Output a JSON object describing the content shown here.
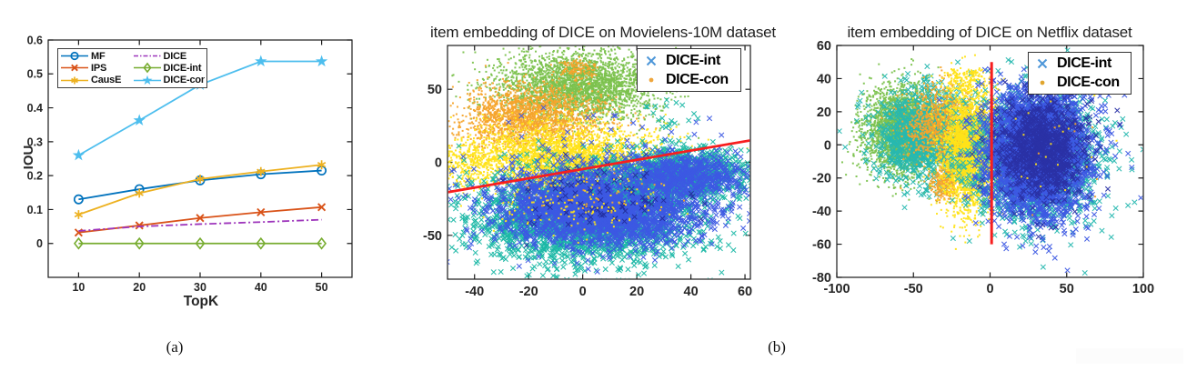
{
  "figure": {
    "captions": {
      "a": "(a)",
      "b": "(b)"
    },
    "text_color": "#262626"
  },
  "chart_data": [
    {
      "id": "iou-vs-topk",
      "type": "line",
      "title": "",
      "xlabel": "TopK",
      "ylabel": "IOU",
      "x": [
        10,
        20,
        30,
        40,
        50
      ],
      "xlim": [
        5,
        55
      ],
      "ylim": [
        -0.1,
        0.6
      ],
      "xticks": [
        10,
        20,
        30,
        40,
        50
      ],
      "yticks": [
        0,
        0.1,
        0.2,
        0.3,
        0.4,
        0.5,
        0.6
      ],
      "grid": false,
      "legend_position": "top-left",
      "series": [
        {
          "name": "MF",
          "color": "#0072BD",
          "marker": "circle",
          "line": "solid",
          "values": [
            0.13,
            0.16,
            0.186,
            0.204,
            0.215
          ]
        },
        {
          "name": "IPS",
          "color": "#D95319",
          "marker": "x",
          "line": "solid",
          "values": [
            0.032,
            0.053,
            0.075,
            0.092,
            0.107
          ]
        },
        {
          "name": "CausE",
          "color": "#EDB120",
          "marker": "asterisk",
          "line": "solid",
          "values": [
            0.085,
            0.148,
            0.19,
            0.212,
            0.232
          ]
        },
        {
          "name": "DICE",
          "color": "#9E36BC",
          "marker": "none",
          "line": "dashdot",
          "values": [
            0.037,
            0.05,
            0.057,
            0.063,
            0.07
          ]
        },
        {
          "name": "DICE-int",
          "color": "#77AC30",
          "marker": "diamond",
          "line": "solid",
          "values": [
            0,
            0,
            0,
            0,
            0
          ]
        },
        {
          "name": "DICE-con",
          "color": "#4DBEEE",
          "marker": "pentagram",
          "line": "solid",
          "values": [
            0.26,
            0.363,
            0.468,
            0.537,
            0.537
          ]
        }
      ]
    },
    {
      "id": "tsne-movielens-10m",
      "type": "scatter",
      "title": "item embedding of DICE on Movielens-10M dataset",
      "xlim": [
        -50,
        62
      ],
      "ylim": [
        -80,
        80
      ],
      "xticks": [
        -40,
        -20,
        0,
        20,
        40,
        60
      ],
      "yticks": [
        -50,
        0,
        50
      ],
      "legend_position": "top-right",
      "legend": [
        {
          "label": "DICE-int",
          "marker": "x",
          "color": "#4D96D9"
        },
        {
          "label": "DICE-con",
          "marker": "dot",
          "color": "#EFA63C"
        }
      ],
      "divider_line": {
        "color": "#F81E1E",
        "width": 2.8,
        "x1": -50,
        "y1": -20.5,
        "x2": 62,
        "y2": 15
      },
      "clusters": [
        {
          "name": "con-green",
          "marker": "dot",
          "color": "#7CC24E",
          "n": 3000,
          "cx": -2,
          "cy": 52,
          "sx": 15,
          "sy": 12
        },
        {
          "name": "con-orange",
          "marker": "dot",
          "color": "#F5A42C",
          "n": 1900,
          "cx": -20,
          "cy": 31,
          "sx": 13,
          "sy": 11
        },
        {
          "name": "con-orange-top",
          "marker": "dot",
          "color": "#F5A42C",
          "n": 120,
          "cx": -2,
          "cy": 64,
          "sx": 3.5,
          "sy": 3
        },
        {
          "name": "con-yellow",
          "marker": "dot",
          "color": "#FFE319",
          "n": 3200,
          "cx": -7,
          "cy": 3,
          "sx": 18,
          "sy": 11
        },
        {
          "name": "con-yellow-left",
          "marker": "dot",
          "color": "#FFE319",
          "n": 220,
          "cx": -42,
          "cy": -2,
          "sx": 5,
          "sy": 9
        },
        {
          "name": "int-blue-upper-sparse",
          "marker": "x",
          "color": "#3C59E3",
          "n": 25,
          "cx": 5,
          "cy": 18,
          "sx": 22,
          "sy": 11
        },
        {
          "name": "int-teal",
          "marker": "x",
          "color": "#1CB8A6",
          "n": 2500,
          "cx": 0,
          "cy": -38,
          "sx": 21,
          "sy": 16
        },
        {
          "name": "int-blue",
          "marker": "x",
          "color": "#3C59E3",
          "n": 2900,
          "cx": 8,
          "cy": -30,
          "sx": 19,
          "sy": 13
        },
        {
          "name": "int-teal-arm",
          "marker": "x",
          "color": "#1CB8A6",
          "n": 800,
          "cx": 38,
          "cy": -6,
          "sx": 13,
          "sy": 9
        },
        {
          "name": "int-blue-arm",
          "marker": "x",
          "color": "#3C59E3",
          "n": 700,
          "cx": 37,
          "cy": -9,
          "sx": 12,
          "sy": 8
        },
        {
          "name": "int-navy-sparse",
          "marker": "x",
          "color": "#232E9E",
          "n": 90,
          "cx": 8,
          "cy": -26,
          "sx": 18,
          "sy": 12
        },
        {
          "name": "int-teal-topright",
          "marker": "x",
          "color": "#1CB8A6",
          "n": 18,
          "cx": 30,
          "cy": 31,
          "sx": 8,
          "sy": 7
        },
        {
          "name": "con-yellow-lower-sparse",
          "marker": "dot",
          "color": "#FFE319",
          "n": 150,
          "cx": -4,
          "cy": -28,
          "sx": 16,
          "sy": 10
        },
        {
          "name": "con-orange-lower-sparse",
          "marker": "dot",
          "color": "#F5A42C",
          "n": 40,
          "cx": 2,
          "cy": -20,
          "sx": 14,
          "sy": 8
        }
      ]
    },
    {
      "id": "tsne-netflix",
      "type": "scatter",
      "title": "item embedding of DICE on Netflix dataset",
      "xlim": [
        -100,
        100
      ],
      "ylim": [
        -80,
        60
      ],
      "xticks": [
        -100,
        -50,
        0,
        50,
        100
      ],
      "yticks": [
        -80,
        -60,
        -40,
        -20,
        0,
        20,
        40,
        60
      ],
      "legend_position": "top-right",
      "legend": [
        {
          "label": "DICE-int",
          "marker": "x",
          "color": "#4D96D9"
        },
        {
          "label": "DICE-con",
          "marker": "dot",
          "color": "#E0A52E"
        }
      ],
      "divider_line": {
        "color": "#F81E1E",
        "width": 3,
        "x1": 1,
        "y1": 50,
        "x2": 1,
        "y2": -60
      },
      "clusters": [
        {
          "name": "con-green",
          "marker": "dot",
          "color": "#7CC24E",
          "n": 3300,
          "cx": -55,
          "cy": 8,
          "sx": 13,
          "sy": 13
        },
        {
          "name": "int-teal-left",
          "marker": "x",
          "color": "#27B8B0",
          "n": 1000,
          "cx": -42,
          "cy": 6,
          "sx": 16,
          "sy": 14
        },
        {
          "name": "con-orange",
          "marker": "dot",
          "color": "#F5A42C",
          "n": 900,
          "cx": -33,
          "cy": 12,
          "sx": 11,
          "sy": 11
        },
        {
          "name": "con-orange-low",
          "marker": "dot",
          "color": "#F5A42C",
          "n": 260,
          "cx": -29,
          "cy": -23,
          "sx": 5,
          "sy": 4.5
        },
        {
          "name": "con-yellow",
          "marker": "dot",
          "color": "#FFE319",
          "n": 3100,
          "cx": -13,
          "cy": -3,
          "sx": 9,
          "sy": 18
        },
        {
          "name": "con-yellow-top",
          "marker": "dot",
          "color": "#FFE319",
          "n": 160,
          "cx": -18,
          "cy": 38,
          "sx": 7,
          "sy": 5
        },
        {
          "name": "int-teal",
          "marker": "x",
          "color": "#27B8B0",
          "n": 1900,
          "cx": 28,
          "cy": -8,
          "sx": 21,
          "sy": 20
        },
        {
          "name": "int-blue",
          "marker": "x",
          "color": "#3C59E3",
          "n": 3100,
          "cx": 30,
          "cy": -5,
          "sx": 17,
          "sy": 19
        },
        {
          "name": "int-navy",
          "marker": "x",
          "color": "#2A31A5",
          "n": 1000,
          "cx": 34,
          "cy": -2,
          "sx": 14,
          "sy": 15
        },
        {
          "name": "con-yellow-right-sparse",
          "marker": "dot",
          "color": "#FFE319",
          "n": 22,
          "cx": 45,
          "cy": -5,
          "sx": 20,
          "sy": 18
        },
        {
          "name": "con-orange-right-sparse",
          "marker": "dot",
          "color": "#F5A42C",
          "n": 8,
          "cx": 55,
          "cy": 0,
          "sx": 18,
          "sy": 15
        }
      ]
    }
  ]
}
